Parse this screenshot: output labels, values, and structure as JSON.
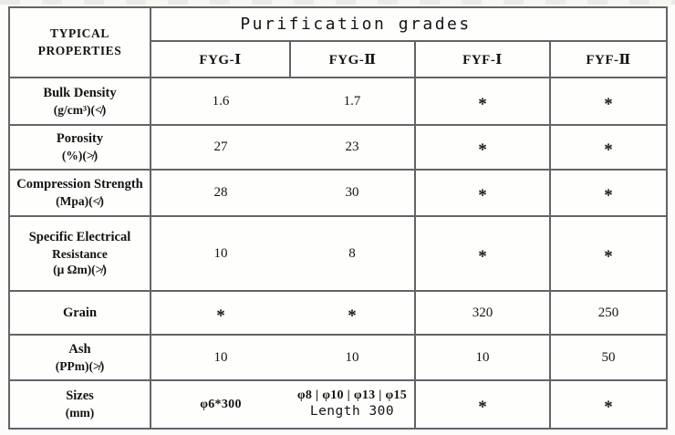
{
  "colors": {
    "border": "#646467",
    "outer_border": "#4c4c50",
    "text": "#141414",
    "background": "#fcfcfa"
  },
  "table": {
    "corner": [
      "TYPICAL",
      "PROPERTIES"
    ],
    "group_header": "Purification grades",
    "columns": [
      "FYG-Ⅰ",
      "FYG-Ⅱ",
      "FYF-Ⅰ",
      "FYF-Ⅱ"
    ],
    "rows": [
      {
        "property": [
          "Bulk Density",
          "(g/cm³)(≮)"
        ],
        "values": [
          "1.6",
          "1.7",
          "*",
          "*"
        ]
      },
      {
        "property": [
          "Porosity",
          "(%)(≯)"
        ],
        "values": [
          "27",
          "23",
          "*",
          "*"
        ]
      },
      {
        "property": [
          "Compression Strength",
          "(Mpa)(≮)"
        ],
        "values": [
          "28",
          "30",
          "*",
          "*"
        ]
      },
      {
        "property": [
          "Specific Electrical",
          "Resistance",
          "(μ Ωm)(≯)"
        ],
        "values": [
          "10",
          "8",
          "*",
          "*"
        ]
      },
      {
        "property": [
          "Grain"
        ],
        "values": [
          "*",
          "*",
          "320",
          "250"
        ]
      },
      {
        "property": [
          "Ash",
          "(PPm)(≯)"
        ],
        "values": [
          "10",
          "10",
          "10",
          "50"
        ]
      },
      {
        "property": [
          "Sizes",
          "(mm)"
        ],
        "values": [
          "φ6*300",
          {
            "line1": "φ8 | φ10 | φ13 | φ15",
            "line2": "Length 300"
          },
          "*",
          "*"
        ]
      }
    ]
  }
}
